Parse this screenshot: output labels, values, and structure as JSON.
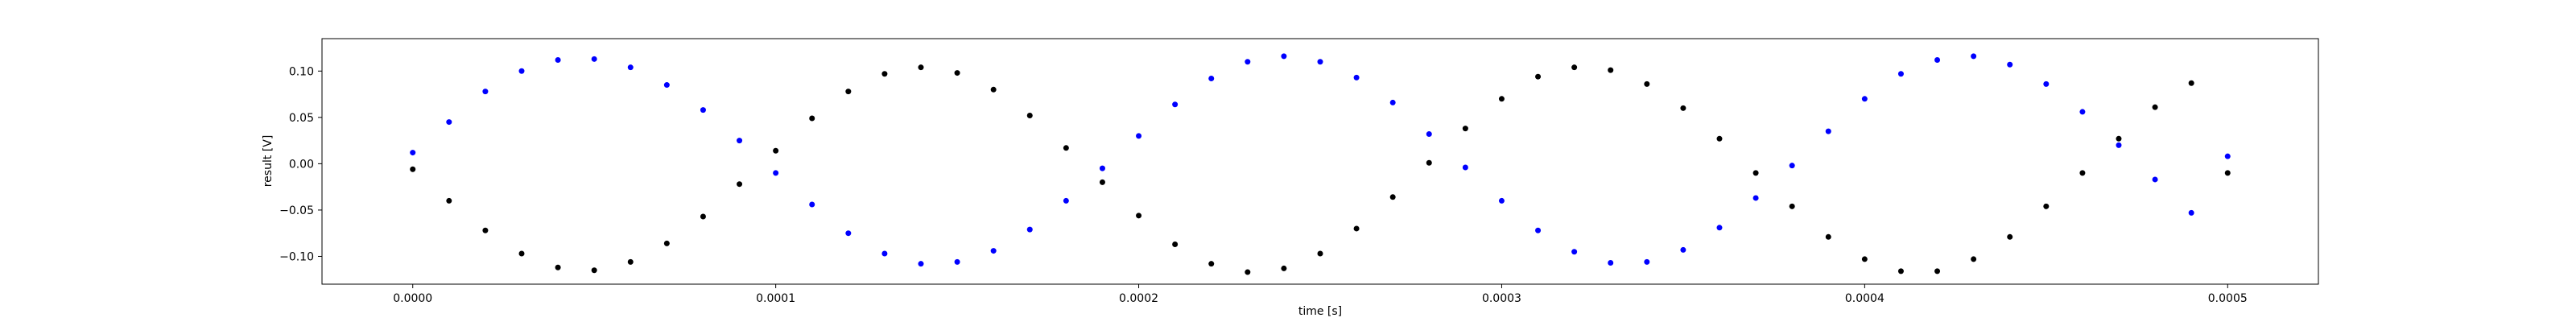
{
  "chart_data": {
    "type": "scatter",
    "title": "",
    "xlabel": "time [s]",
    "ylabel": "result [V]",
    "xlim": [
      -2.5e-05,
      0.000525
    ],
    "ylim": [
      -0.13,
      0.135
    ],
    "grid": false,
    "legend": "none",
    "x_ticks": [
      {
        "value": 0.0,
        "label": "0.0000"
      },
      {
        "value": 0.0001,
        "label": "0.0001"
      },
      {
        "value": 0.0002,
        "label": "0.0002"
      },
      {
        "value": 0.0003,
        "label": "0.0003"
      },
      {
        "value": 0.0004,
        "label": "0.0004"
      },
      {
        "value": 0.0005,
        "label": "0.0005"
      }
    ],
    "y_ticks": [
      {
        "value": 0.1,
        "label": "0.10"
      },
      {
        "value": 0.05,
        "label": "0.05"
      },
      {
        "value": 0.0,
        "label": "0.00"
      },
      {
        "value": -0.05,
        "label": "−0.05"
      },
      {
        "value": -0.1,
        "label": "−0.10"
      }
    ],
    "series": [
      {
        "color": "#0000ff",
        "marker": "dot",
        "x": [
          0.0,
          1e-05,
          2e-05,
          3e-05,
          4e-05,
          5e-05,
          6e-05,
          7e-05,
          8e-05,
          9e-05,
          0.0001,
          0.00011,
          0.00012,
          0.00013,
          0.00014,
          0.00015,
          0.00016,
          0.00017,
          0.00018,
          0.00019,
          0.0002,
          0.00021,
          0.00022,
          0.00023,
          0.00024,
          0.00025,
          0.00026,
          0.00027,
          0.00028,
          0.00029,
          0.0003,
          0.00031,
          0.00032,
          0.00033,
          0.00034,
          0.00035,
          0.00036,
          0.00037,
          0.00038,
          0.00039,
          0.0004,
          0.00041,
          0.00042,
          0.00043,
          0.00044,
          0.00045,
          0.00046,
          0.00047,
          0.00048,
          0.00049,
          0.0005
        ],
        "y": [
          0.012,
          0.045,
          0.078,
          0.1,
          0.112,
          0.113,
          0.104,
          0.085,
          0.058,
          0.025,
          -0.01,
          -0.044,
          -0.075,
          -0.097,
          -0.108,
          -0.106,
          -0.094,
          -0.071,
          -0.04,
          -0.005,
          0.03,
          0.064,
          0.092,
          0.11,
          0.116,
          0.11,
          0.093,
          0.066,
          0.032,
          -0.004,
          -0.04,
          -0.072,
          -0.095,
          -0.107,
          -0.106,
          -0.093,
          -0.069,
          -0.037,
          -0.002,
          0.035,
          0.07,
          0.097,
          0.112,
          0.116,
          0.107,
          0.086,
          0.056,
          0.02,
          -0.017,
          -0.053,
          0.008
        ]
      },
      {
        "color": "#000000",
        "marker": "dot",
        "x": [
          0.0,
          1e-05,
          2e-05,
          3e-05,
          4e-05,
          5e-05,
          6e-05,
          7e-05,
          8e-05,
          9e-05,
          0.0001,
          0.00011,
          0.00012,
          0.00013,
          0.00014,
          0.00015,
          0.00016,
          0.00017,
          0.00018,
          0.00019,
          0.0002,
          0.00021,
          0.00022,
          0.00023,
          0.00024,
          0.00025,
          0.00026,
          0.00027,
          0.00028,
          0.00029,
          0.0003,
          0.00031,
          0.00032,
          0.00033,
          0.00034,
          0.00035,
          0.00036,
          0.00037,
          0.00038,
          0.00039,
          0.0004,
          0.00041,
          0.00042,
          0.00043,
          0.00044,
          0.00045,
          0.00046,
          0.00047,
          0.00048,
          0.00049,
          0.0005
        ],
        "y": [
          -0.006,
          -0.04,
          -0.072,
          -0.097,
          -0.112,
          -0.115,
          -0.106,
          -0.086,
          -0.057,
          -0.022,
          0.014,
          0.049,
          0.078,
          0.097,
          0.104,
          0.098,
          0.08,
          0.052,
          0.017,
          -0.02,
          -0.056,
          -0.087,
          -0.108,
          -0.117,
          -0.113,
          -0.097,
          -0.07,
          -0.036,
          0.001,
          0.038,
          0.07,
          0.094,
          0.104,
          0.101,
          0.086,
          0.06,
          0.027,
          -0.01,
          -0.046,
          -0.079,
          -0.103,
          -0.116,
          -0.116,
          -0.103,
          -0.079,
          -0.046,
          -0.01,
          0.027,
          0.061,
          0.087,
          -0.01
        ]
      }
    ]
  }
}
